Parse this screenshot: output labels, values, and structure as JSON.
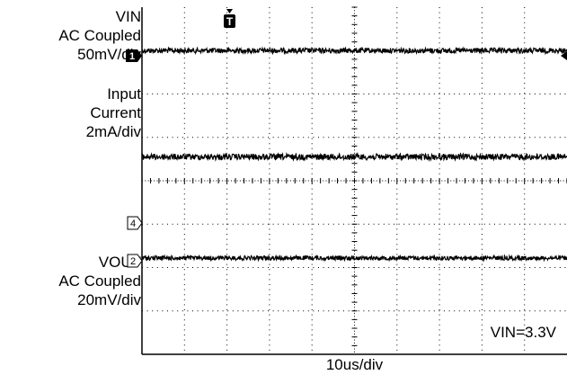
{
  "labels": {
    "vin": [
      "VIN",
      "AC Coupled",
      "50mV/div"
    ],
    "input_current": [
      "Input",
      "Current",
      "2mA/div"
    ],
    "vout": [
      "VOUT",
      "AC Coupled",
      "20mV/div"
    ]
  },
  "timebase": "10us/div",
  "condition": "VIN=3.3V",
  "markers": {
    "trigger": "T",
    "ch1": "1",
    "ch2": "2",
    "ch4": "4"
  },
  "colors": {
    "trace": "#000000",
    "grid": "#000000",
    "background": "#ffffff"
  },
  "chart_data": {
    "type": "line",
    "x_divisions": 10,
    "y_divisions": 8,
    "grid": true,
    "series": [
      {
        "channel": "1",
        "level_div": 7.0,
        "noise_div": 0.06
      },
      {
        "channel": "4",
        "level_div": 4.55,
        "noise_div": 0.07
      },
      {
        "channel": "2",
        "level_div": 2.22,
        "noise_div": 0.05
      }
    ]
  }
}
